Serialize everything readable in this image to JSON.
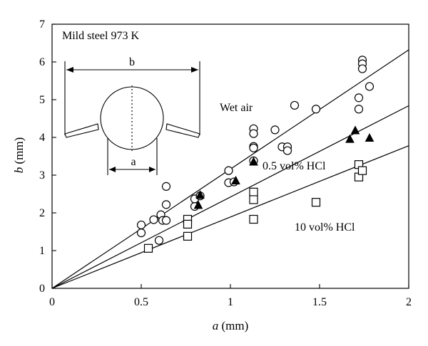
{
  "chart_data": {
    "type": "scatter",
    "title_annotation": "Mild steel 973 K",
    "xlabel_italic": "a",
    "xlabel_unit": "(mm)",
    "ylabel_italic": "b",
    "ylabel_unit": "(mm)",
    "xlim": [
      0,
      2
    ],
    "ylim": [
      0,
      7
    ],
    "xticks": [
      0,
      0.5,
      1,
      1.5,
      2
    ],
    "xtick_labels": [
      "0",
      "0.5",
      "1",
      "1.5",
      "2"
    ],
    "yticks": [
      0,
      1,
      2,
      3,
      4,
      5,
      6,
      7
    ],
    "ytick_labels": [
      "0",
      "1",
      "2",
      "3",
      "4",
      "5",
      "6",
      "7"
    ],
    "grid": false,
    "series": [
      {
        "name": "Wet air",
        "marker": "circle",
        "points": [
          [
            0.5,
            1.68
          ],
          [
            0.5,
            1.47
          ],
          [
            0.57,
            1.82
          ],
          [
            0.6,
            1.27
          ],
          [
            0.61,
            1.95
          ],
          [
            0.62,
            1.8
          ],
          [
            0.64,
            1.8
          ],
          [
            0.64,
            2.22
          ],
          [
            0.64,
            2.7
          ],
          [
            0.8,
            2.17
          ],
          [
            0.8,
            2.37
          ],
          [
            0.83,
            2.45
          ],
          [
            0.99,
            3.12
          ],
          [
            0.99,
            2.8
          ],
          [
            1.02,
            2.82
          ],
          [
            1.13,
            4.23
          ],
          [
            1.13,
            4.1
          ],
          [
            1.13,
            3.76
          ],
          [
            1.13,
            3.72
          ],
          [
            1.13,
            3.38
          ],
          [
            1.25,
            4.2
          ],
          [
            1.29,
            3.75
          ],
          [
            1.32,
            3.75
          ],
          [
            1.32,
            3.65
          ],
          [
            1.36,
            4.85
          ],
          [
            1.48,
            4.75
          ],
          [
            1.72,
            5.05
          ],
          [
            1.72,
            4.75
          ],
          [
            1.74,
            6.05
          ],
          [
            1.74,
            5.95
          ],
          [
            1.74,
            5.82
          ],
          [
            1.78,
            5.35
          ]
        ],
        "fit_slope": 3.16
      },
      {
        "name": "0.5 vol% HCl",
        "marker": "triangle",
        "points": [
          [
            0.82,
            2.2
          ],
          [
            0.83,
            2.47
          ],
          [
            1.03,
            2.85
          ],
          [
            1.13,
            3.35
          ],
          [
            1.67,
            3.95
          ],
          [
            1.7,
            4.18
          ],
          [
            1.78,
            3.98
          ]
        ],
        "fit_slope": 2.42
      },
      {
        "name": "10 vol% HCl",
        "marker": "square",
        "points": [
          [
            0.54,
            1.06
          ],
          [
            0.76,
            1.83
          ],
          [
            0.76,
            1.7
          ],
          [
            0.76,
            1.38
          ],
          [
            1.13,
            2.55
          ],
          [
            1.13,
            2.35
          ],
          [
            1.13,
            1.83
          ],
          [
            1.48,
            2.28
          ],
          [
            1.72,
            3.28
          ],
          [
            1.72,
            2.95
          ],
          [
            1.74,
            3.12
          ]
        ],
        "fit_slope": 1.89
      }
    ]
  },
  "schematic": {
    "label_b": "b",
    "label_a": "a"
  }
}
